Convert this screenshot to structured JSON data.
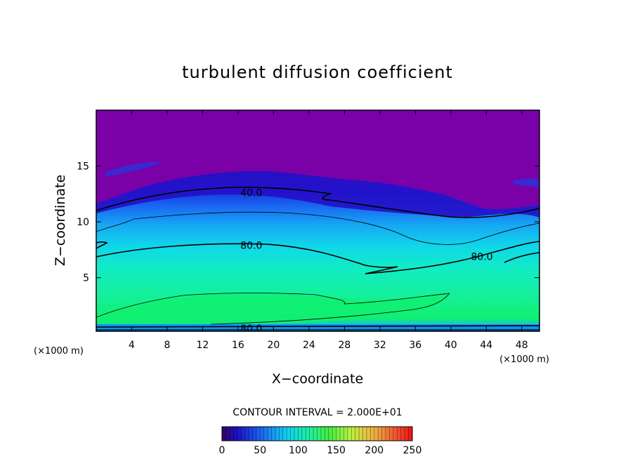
{
  "chart_data": {
    "type": "heatmap",
    "title": "turbulent diffusion coefficient",
    "xlabel": "X−coordinate",
    "ylabel": "Z−coordinate",
    "x_unit": "(×1000 m)",
    "y_unit": "(×1000 m)",
    "xlim": [
      0,
      50
    ],
    "ylim": [
      0.2,
      20
    ],
    "x_ticks": [
      4,
      8,
      12,
      16,
      20,
      24,
      28,
      32,
      36,
      40,
      44,
      48
    ],
    "y_ticks": [
      5,
      10,
      15
    ],
    "contour_interval": "CONTOUR INTERVAL = 2.000E+01",
    "colorbar": {
      "ticks": [
        0,
        50,
        100,
        150,
        200,
        250
      ],
      "range": [
        0,
        250
      ]
    },
    "contour_labels": [
      {
        "text": "40.0",
        "x": 17.5,
        "y": 12.6
      },
      {
        "text": "80.0",
        "x": 17.5,
        "y": 7.9
      },
      {
        "text": "80.0",
        "x": 43.5,
        "y": 6.9
      },
      {
        "text": "80.0",
        "x": 17.5,
        "y": 0.45
      }
    ]
  }
}
